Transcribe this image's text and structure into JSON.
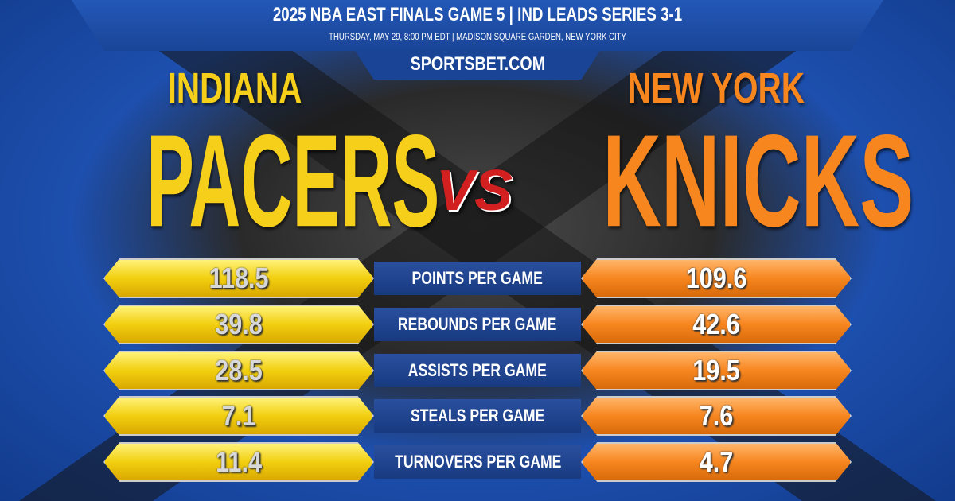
{
  "header": {
    "title": "2025 NBA EAST FINALS GAME 5  |  IND LEADS SERIES 3-1",
    "subtitle": "THURSDAY, MAY 29, 8:00 PM EDT  |  MADISON SQUARE GARDEN, NEW YORK CITY",
    "brand": "SPORTSBET.COM"
  },
  "teams": {
    "left": {
      "city": "INDIANA",
      "name": "PACERS",
      "color": "#f5cf1a"
    },
    "right": {
      "city": "NEW YORK",
      "name": "KNICKS",
      "color": "#f7861f"
    },
    "vs": "VS"
  },
  "stats": [
    {
      "label": "POINTS PER GAME",
      "left": "118.5",
      "right": "109.6"
    },
    {
      "label": "REBOUNDS PER GAME",
      "left": "39.8",
      "right": "42.6"
    },
    {
      "label": "ASSISTS PER GAME",
      "left": "28.5",
      "right": "19.5"
    },
    {
      "label": "STEALS PER GAME",
      "left": "7.1",
      "right": "7.6"
    },
    {
      "label": "TURNOVERS PER GAME",
      "left": "11.4",
      "right": "4.7"
    }
  ]
}
